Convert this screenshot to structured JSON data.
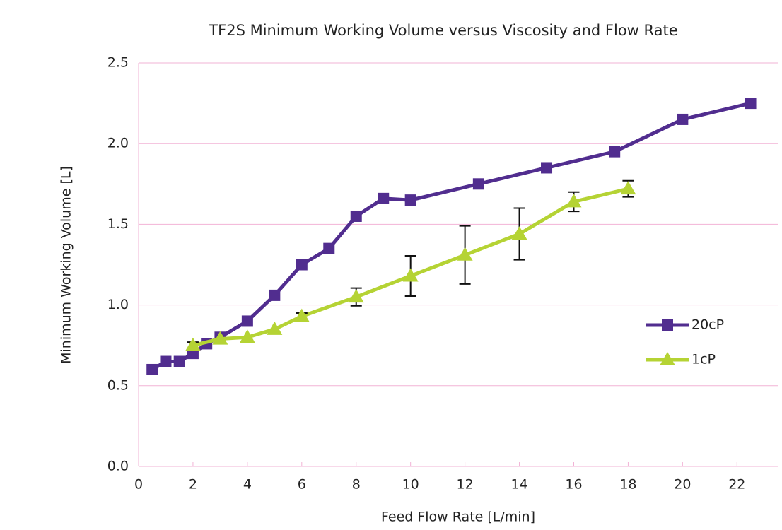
{
  "chart_data": {
    "type": "line",
    "title": "TF2S Minimum Working Volume versus Viscosity and Flow Rate",
    "x_label": "Feed Flow Rate [L/min]",
    "y_label": "Minimum Working Volume [L]",
    "xlim": [
      0,
      23.5
    ],
    "xticks": [
      0,
      2,
      4,
      6,
      8,
      10,
      12,
      14,
      16,
      18,
      20,
      22
    ],
    "ylim": [
      0,
      2.5
    ],
    "yticks": [
      {
        "value": 0,
        "label": "0.0"
      },
      0.5,
      {
        "value": 1,
        "label": "1.0"
      },
      1.5,
      {
        "value": 2,
        "label": "2.0"
      },
      2.5
    ],
    "grid": true,
    "legend": "right",
    "series": [
      {
        "name": "20cP",
        "color": "#512d8f",
        "marker": "square",
        "x": [
          0.5,
          1,
          1.5,
          2,
          2.5,
          3,
          4,
          5,
          6,
          7,
          8,
          9,
          10,
          12.5,
          15,
          17.5,
          20,
          22.5
        ],
        "values": [
          0.6,
          0.65,
          0.65,
          0.7,
          0.76,
          0.8,
          0.9,
          1.06,
          1.25,
          1.35,
          1.55,
          1.66,
          1.65,
          1.75,
          1.85,
          1.95,
          2.15,
          2.25
        ]
      },
      {
        "name": "1cP",
        "color": "#b5d334",
        "marker": "triangle",
        "x": [
          2,
          3,
          4,
          5,
          6,
          8,
          10,
          12,
          14,
          16,
          18
        ],
        "values": [
          0.75,
          0.79,
          0.8,
          0.85,
          0.93,
          1.05,
          1.18,
          1.31,
          1.44,
          1.64,
          1.72
        ],
        "errors": [
          0.02,
          null,
          null,
          null,
          0.02,
          0.055,
          0.125,
          0.18,
          0.16,
          0.06,
          0.05
        ]
      }
    ]
  }
}
